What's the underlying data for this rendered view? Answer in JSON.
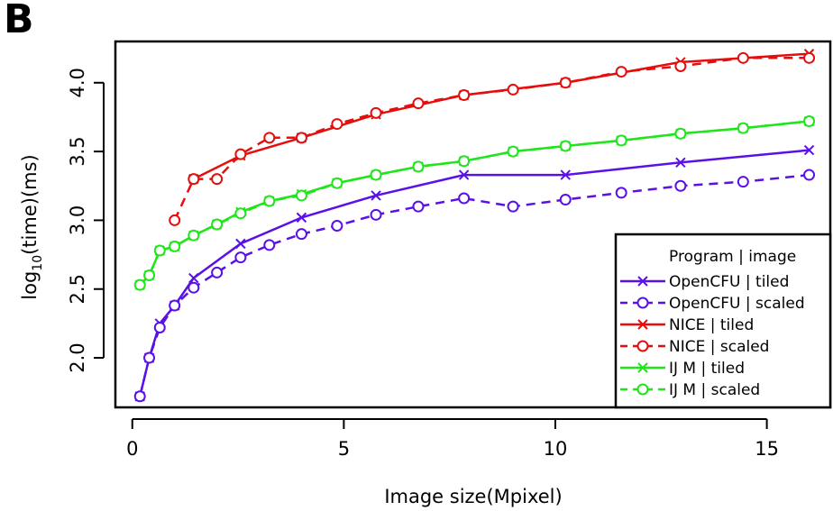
{
  "panel_label": "B",
  "chart_data": {
    "type": "line",
    "xlabel": "Image size(Mpixel)",
    "ylabel": {
      "base": "log",
      "sub": "10",
      "rest": "(time)(ms)"
    },
    "xlim": [
      -0.4,
      16.5
    ],
    "ylim": [
      1.64,
      4.3
    ],
    "xticks": [
      0,
      5,
      10,
      15
    ],
    "yticks": [
      2.0,
      2.5,
      3.0,
      3.5,
      4.0
    ],
    "legend": {
      "title": "Program | image",
      "placement": "bottom-right"
    },
    "series": [
      {
        "name": "OpenCFU | tiled",
        "color": "#5a10e6",
        "style": "solid",
        "marker": "x",
        "x": [
          0.18,
          0.4,
          0.65,
          1.0,
          1.45,
          2.56,
          4.0,
          5.76,
          7.84,
          10.24,
          12.96,
          16.0
        ],
        "y": [
          1.72,
          2.0,
          2.25,
          2.38,
          2.58,
          2.83,
          3.02,
          3.18,
          3.33,
          3.33,
          3.42,
          3.51
        ]
      },
      {
        "name": "OpenCFU | scaled",
        "color": "#5a10e6",
        "style": "dashed",
        "marker": "o",
        "x": [
          0.18,
          0.4,
          0.65,
          1.0,
          1.45,
          2.0,
          2.56,
          3.24,
          4.0,
          4.84,
          5.76,
          6.76,
          7.84,
          9.0,
          10.24,
          11.56,
          12.96,
          14.44,
          16.0
        ],
        "y": [
          1.72,
          2.0,
          2.22,
          2.38,
          2.51,
          2.62,
          2.73,
          2.82,
          2.9,
          2.96,
          3.04,
          3.1,
          3.16,
          3.1,
          3.15,
          3.2,
          3.25,
          3.28,
          3.33
        ]
      },
      {
        "name": "NICE | tiled",
        "color": "#e60d0d",
        "style": "solid",
        "marker": "x",
        "x": [
          1.45,
          2.56,
          4.0,
          5.76,
          7.84,
          10.24,
          12.96,
          16.0
        ],
        "y": [
          3.3,
          3.47,
          3.6,
          3.77,
          3.91,
          4.0,
          4.15,
          4.21
        ]
      },
      {
        "name": "NICE | scaled",
        "color": "#e60d0d",
        "style": "dashed",
        "marker": "o",
        "x": [
          1.0,
          1.45,
          2.0,
          2.56,
          3.24,
          4.0,
          4.84,
          5.76,
          6.76,
          7.84,
          9.0,
          10.24,
          11.56,
          12.96,
          14.44,
          16.0
        ],
        "y": [
          3.0,
          3.3,
          3.3,
          3.48,
          3.6,
          3.6,
          3.7,
          3.78,
          3.85,
          3.91,
          3.95,
          4.0,
          4.08,
          4.12,
          4.18,
          4.18
        ]
      },
      {
        "name": "IJ M | tiled",
        "color": "#1fe61a",
        "style": "solid",
        "marker": "x",
        "x": [
          0.18,
          0.4,
          0.65,
          1.0,
          1.45,
          2.0,
          2.56,
          3.24,
          4.0,
          4.84,
          5.76,
          6.76,
          7.84,
          9.0,
          10.24,
          11.56,
          12.96,
          14.44,
          16.0
        ],
        "y": [
          2.53,
          2.6,
          2.78,
          2.81,
          2.89,
          2.97,
          3.06,
          3.14,
          3.19,
          3.27,
          3.33,
          3.39,
          3.43,
          3.5,
          3.54,
          3.58,
          3.63,
          3.67,
          3.72
        ]
      },
      {
        "name": "IJ M | scaled",
        "color": "#1fe61a",
        "style": "dashed",
        "marker": "o",
        "x": [
          0.18,
          0.4,
          0.65,
          1.0,
          1.45,
          2.0,
          2.56,
          3.24,
          4.0,
          4.84,
          5.76,
          6.76,
          7.84,
          9.0,
          10.24,
          11.56,
          12.96,
          14.44,
          16.0
        ],
        "y": [
          2.53,
          2.6,
          2.78,
          2.81,
          2.89,
          2.97,
          3.05,
          3.14,
          3.18,
          3.27,
          3.33,
          3.39,
          3.43,
          3.5,
          3.54,
          3.58,
          3.63,
          3.67,
          3.72
        ]
      }
    ]
  }
}
